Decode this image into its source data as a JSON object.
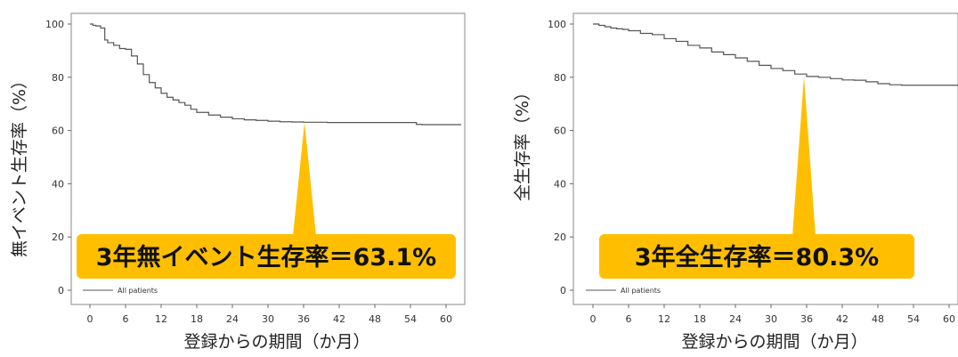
{
  "colors": {
    "curve": "#555555",
    "frame": "#888888",
    "callout": "#ffbf00",
    "text": "#111111"
  },
  "chart_data": [
    {
      "type": "line",
      "xlabel": "登録からの期間（か月）",
      "ylabel": "無イベント生存率（%）",
      "xlim": [
        0,
        60
      ],
      "ylim": [
        0,
        100
      ],
      "x_ticks": [
        "0",
        "6",
        "12",
        "18",
        "24",
        "30",
        "36",
        "42",
        "48",
        "54",
        "60"
      ],
      "y_ticks": [
        "0",
        "20",
        "40",
        "60",
        "80",
        "100"
      ],
      "legend": "All patients",
      "legend_position": "bottom-left",
      "callout": {
        "text": "3年無イベント生存率＝63.1%",
        "x": 36,
        "y": 63.1
      },
      "series": [
        {
          "name": "All patients",
          "x": [
            0,
            0.5,
            1,
            1.8,
            2.5,
            3,
            4,
            5,
            6,
            7,
            8,
            9,
            10,
            11,
            12,
            13,
            14,
            15,
            16,
            17,
            18,
            20,
            22,
            24,
            26,
            28,
            30,
            32,
            34,
            36,
            40,
            44,
            48,
            52,
            54,
            55,
            56,
            58,
            60,
            63
          ],
          "y": [
            100,
            99.5,
            99.3,
            98.5,
            94,
            93,
            92,
            90.8,
            90.5,
            88,
            85,
            81,
            78,
            76,
            74,
            72.5,
            71.5,
            70.5,
            69.5,
            68,
            66.8,
            65.8,
            65,
            64.4,
            64,
            63.8,
            63.5,
            63.3,
            63.2,
            63.1,
            63,
            63,
            63,
            63,
            63,
            62.3,
            62.2,
            62.2,
            62.2,
            62.2
          ]
        }
      ]
    },
    {
      "type": "line",
      "xlabel": "登録からの期間（か月）",
      "ylabel": "全生存率（%）",
      "xlim": [
        0,
        60
      ],
      "ylim": [
        0,
        100
      ],
      "x_ticks": [
        "0",
        "6",
        "12",
        "18",
        "24",
        "30",
        "36",
        "42",
        "48",
        "54",
        "60"
      ],
      "y_ticks": [
        "0",
        "20",
        "40",
        "60",
        "80",
        "100"
      ],
      "legend": "All patients",
      "legend_position": "bottom-left",
      "callout": {
        "text": "3年全生存率＝80.3%",
        "x": 36,
        "y": 80.3
      },
      "series": [
        {
          "name": "All patients",
          "x": [
            0,
            1,
            2,
            3,
            4,
            5,
            6,
            8,
            10,
            12,
            14,
            16,
            18,
            20,
            22,
            24,
            26,
            28,
            30,
            32,
            34,
            36,
            38,
            40,
            42,
            44,
            46,
            48,
            50,
            52,
            54,
            56,
            58,
            60,
            63
          ],
          "y": [
            100,
            99.5,
            99,
            98.5,
            98.2,
            98,
            97.5,
            96.5,
            96,
            94.5,
            93.5,
            92,
            91,
            89.5,
            88.5,
            87.3,
            86,
            84.5,
            83.3,
            82.5,
            81.2,
            80.3,
            80,
            79.5,
            79,
            78.9,
            78.3,
            77.6,
            77.2,
            77,
            77,
            77,
            77,
            77,
            77
          ]
        }
      ]
    }
  ]
}
